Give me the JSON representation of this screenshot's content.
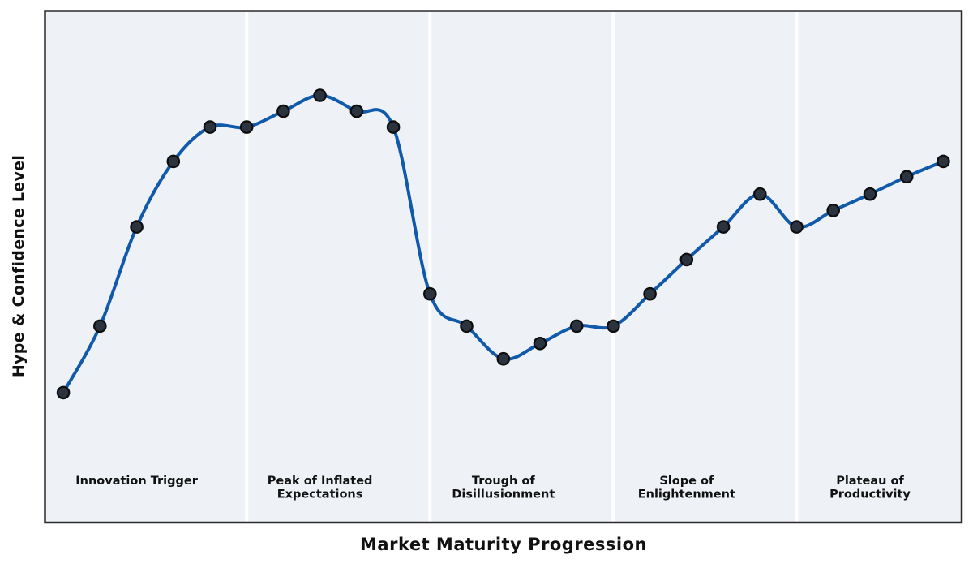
{
  "chart_data": {
    "type": "line",
    "title": "",
    "xlabel": "Market Maturity Progression",
    "ylabel": "Hype & Confidence Level",
    "x": [
      0,
      1,
      2,
      3,
      4,
      5,
      6,
      7,
      8,
      9,
      10,
      11,
      12,
      13,
      14,
      15,
      16,
      17,
      18,
      19,
      20,
      21,
      22,
      23,
      24
    ],
    "values": [
      25.4,
      38.4,
      57.8,
      70.6,
      77.3,
      77.3,
      80.4,
      83.5,
      80.4,
      77.3,
      44.7,
      38.4,
      32.0,
      35.0,
      38.4,
      38.4,
      44.7,
      51.4,
      57.8,
      64.2,
      57.8,
      61.0,
      64.2,
      67.6,
      70.6
    ],
    "xlim": [
      -0.5,
      24.5
    ],
    "ylim": [
      0,
      100
    ],
    "grid": false,
    "legend": "none",
    "axis_ticks": "none",
    "series_style": "smooth spline with circular markers",
    "phase_boundaries_x": [
      5,
      10,
      15,
      20
    ],
    "phases": [
      {
        "name": "Innovation Trigger",
        "lines": [
          "Innovation Trigger"
        ],
        "band": [
          -0.5,
          5
        ],
        "label_x": 2
      },
      {
        "name": "Peak of Inflated Expectations",
        "lines": [
          "Peak of Inflated",
          "Expectations"
        ],
        "band": [
          5,
          10
        ],
        "label_x": 7
      },
      {
        "name": "Trough of Disillusionment",
        "lines": [
          "Trough of",
          "Disillusionment"
        ],
        "band": [
          10,
          15
        ],
        "label_x": 12
      },
      {
        "name": "Slope of Enlightenment",
        "lines": [
          "Slope of",
          "Enlightenment"
        ],
        "band": [
          15,
          20
        ],
        "label_x": 17
      },
      {
        "name": "Plateau of Productivity",
        "lines": [
          "Plateau of",
          "Productivity"
        ],
        "band": [
          20,
          24.5
        ],
        "label_x": 22
      }
    ],
    "colors": {
      "line": "#1159aa",
      "marker_fill": "#2b333f",
      "marker_edge": "#0d0d0d",
      "plot_background": "#eef2f6",
      "phase_divider": "#ffffff",
      "plot_border": "#2b2b2b",
      "label_text": "#111111",
      "figure_background": "#ffffff"
    }
  }
}
